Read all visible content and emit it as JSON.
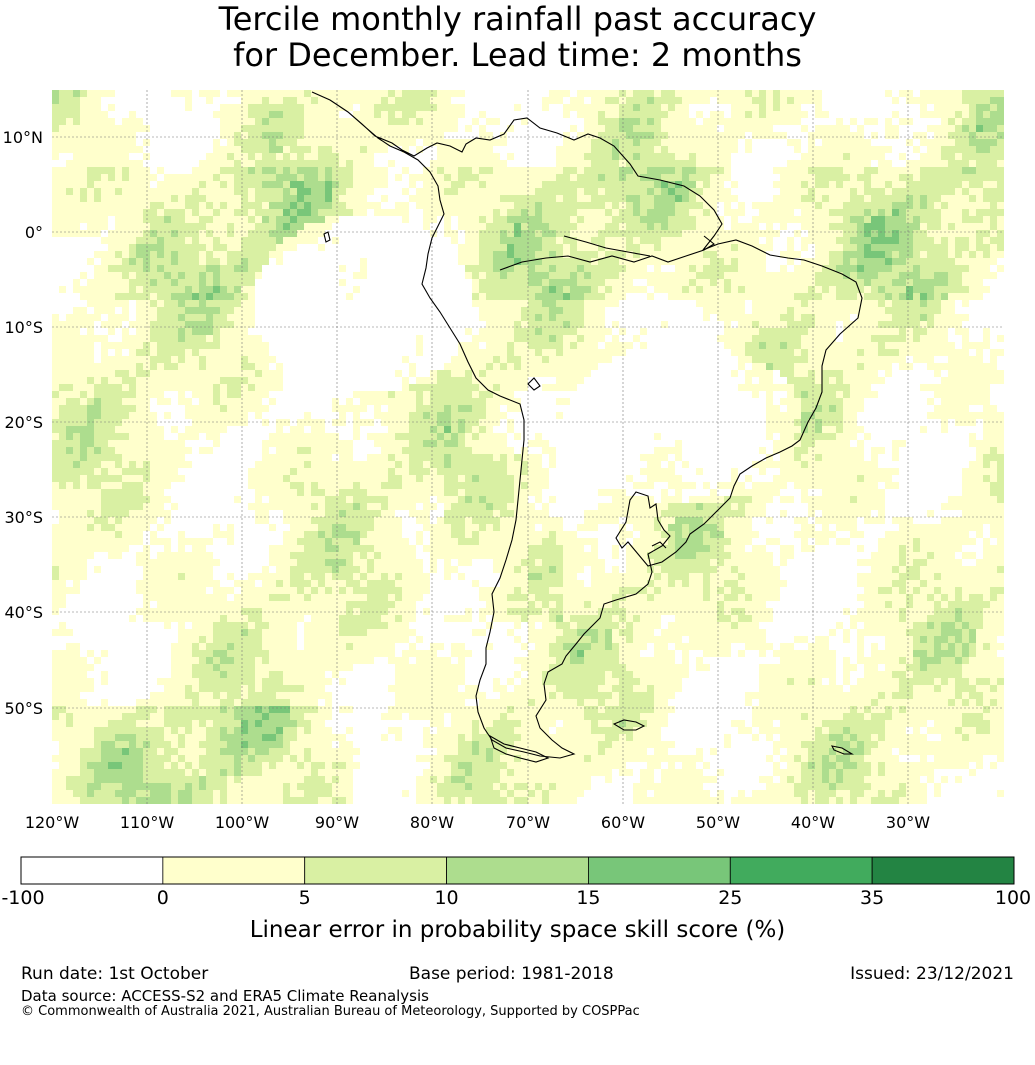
{
  "title_line1": "Tercile monthly rainfall past accuracy",
  "title_line2": "for December. Lead time: 2 months",
  "map": {
    "lat_labels": [
      "10°N",
      "0°",
      "10°S",
      "20°S",
      "30°S",
      "40°S",
      "50°S"
    ],
    "lon_labels": [
      "120°W",
      "110°W",
      "100°W",
      "90°W",
      "80°W",
      "70°W",
      "60°W",
      "50°W",
      "40°W",
      "30°W"
    ],
    "palette": [
      "#ffffff",
      "#ffffcc",
      "#d9f0a3",
      "#addd8e",
      "#78c679",
      "#41ab5d",
      "#238443"
    ]
  },
  "colorbar": {
    "ticks": [
      "-100",
      "0",
      "5",
      "10",
      "15",
      "25",
      "35",
      "100"
    ],
    "colors": [
      "#ffffff",
      "#ffffcc",
      "#d9f0a3",
      "#addd8e",
      "#78c679",
      "#41ab5d",
      "#238443"
    ],
    "label": "Linear error in probability space skill score (%)"
  },
  "footer": {
    "run_date": "Run date: 1st October",
    "base_period": "Base period: 1981-2018",
    "issued": "Issued: 23/12/2021",
    "data_source": "Data source: ACCESS-S2 and ERA5 Climate Reanalysis",
    "copyright": "© Commonwealth of Australia 2021, Australian Bureau of Meteorology, Supported by COSPPac"
  }
}
